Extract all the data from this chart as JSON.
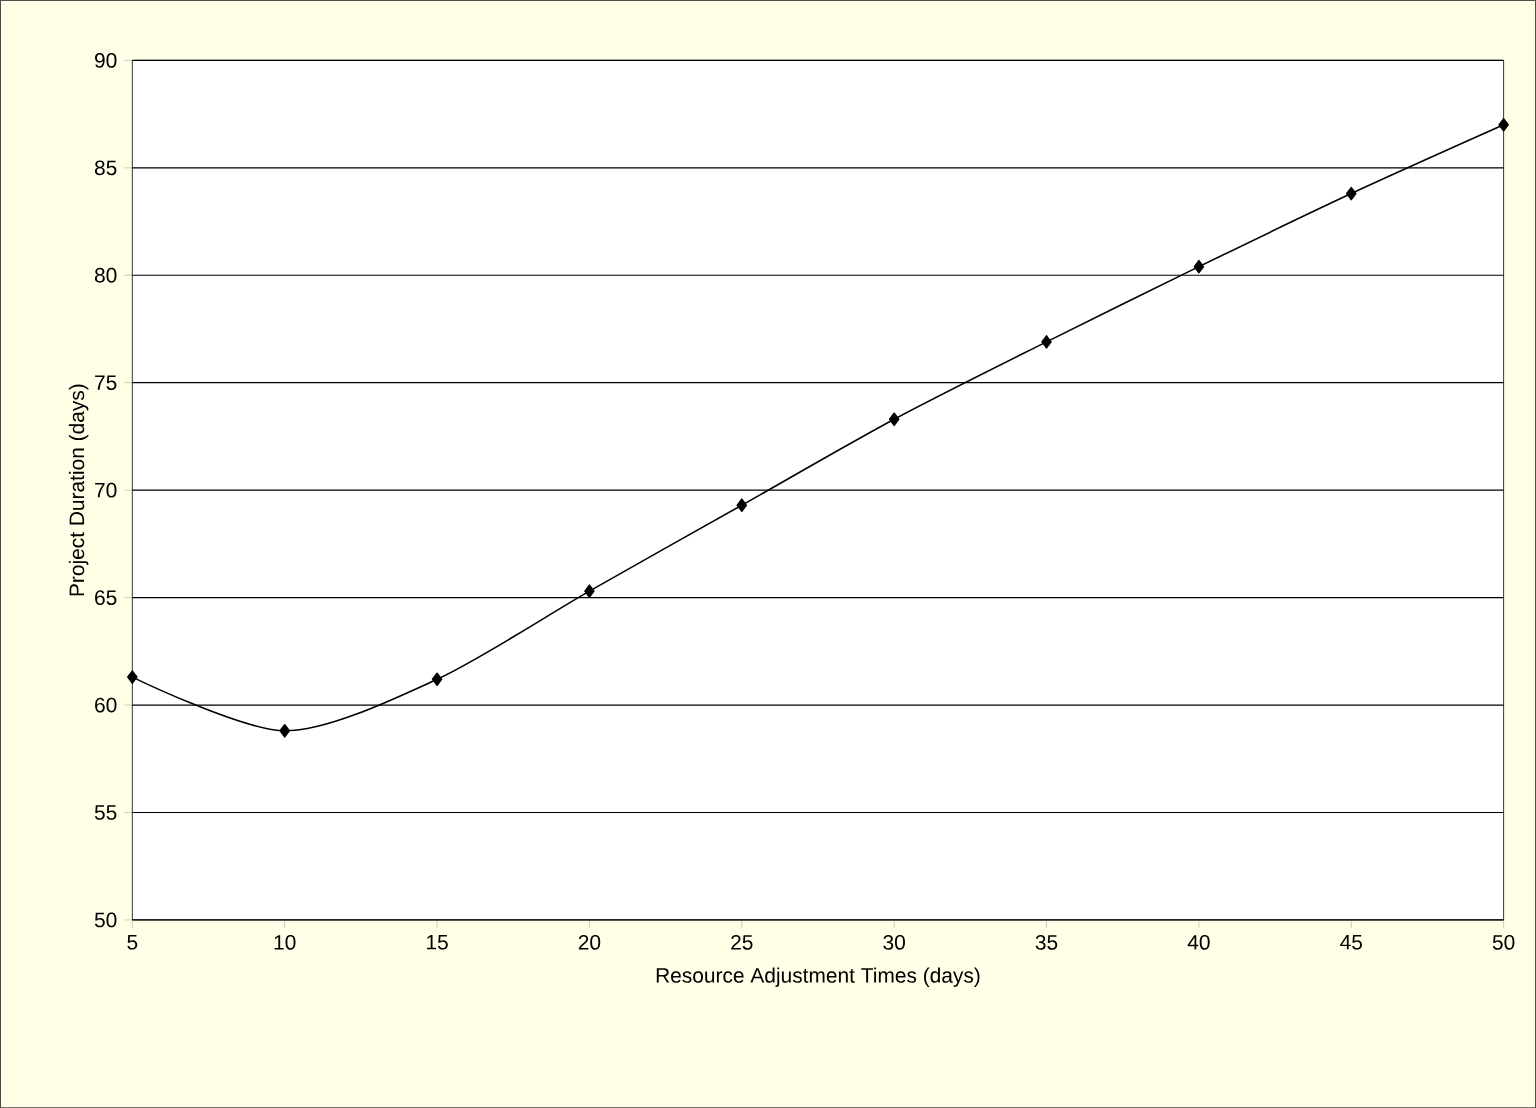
{
  "chart_data": {
    "type": "line",
    "xlabel": "Resource Adjustment Times (days)",
    "ylabel": "Project Duration (days)",
    "x": [
      5,
      10,
      15,
      20,
      25,
      30,
      35,
      40,
      45,
      50
    ],
    "series": [
      {
        "color": "#000000",
        "values": [
          61.3,
          58.8,
          61.2,
          65.3,
          69.3,
          73.3,
          76.9,
          80.4,
          83.8,
          87.0
        ]
      }
    ],
    "xlim": [
      5,
      50
    ],
    "xticks": [
      5,
      10,
      15,
      20,
      25,
      30,
      35,
      40,
      45,
      50
    ],
    "ylim": [
      50,
      90
    ],
    "yticks": [
      50,
      55,
      60,
      65,
      70,
      75,
      80,
      85,
      90
    ],
    "grid": "y",
    "marker": "diamond",
    "line_style": "solid"
  }
}
